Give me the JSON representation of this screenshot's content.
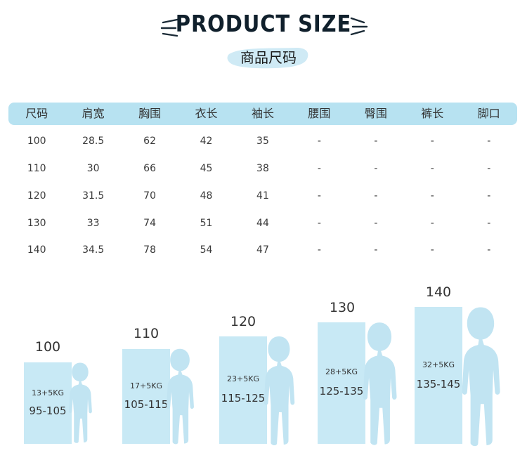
{
  "header": {
    "title": "PRODUCT SIZE",
    "subtitle": "商品尺码"
  },
  "table": {
    "columns": [
      "尺码",
      "肩宽",
      "胸围",
      "衣长",
      "袖长",
      "腰围",
      "臀围",
      "裤长",
      "脚口"
    ],
    "rows": [
      [
        "100",
        "28.5",
        "62",
        "42",
        "35",
        "-",
        "-",
        "-",
        "-"
      ],
      [
        "110",
        "30",
        "66",
        "45",
        "38",
        "-",
        "-",
        "-",
        "-"
      ],
      [
        "120",
        "31.5",
        "70",
        "48",
        "41",
        "-",
        "-",
        "-",
        "-"
      ],
      [
        "130",
        "33",
        "74",
        "51",
        "44",
        "-",
        "-",
        "-",
        "-"
      ],
      [
        "140",
        "34.5",
        "78",
        "54",
        "47",
        "-",
        "-",
        "-",
        "-"
      ]
    ]
  },
  "size_chart": [
    {
      "size": "100",
      "weight": "13+5KG",
      "height": "95-105"
    },
    {
      "size": "110",
      "weight": "17+5KG",
      "height": "105-115"
    },
    {
      "size": "120",
      "weight": "23+5KG",
      "height": "115-125"
    },
    {
      "size": "130",
      "weight": "28+5KG",
      "height": "125-135"
    },
    {
      "size": "140",
      "weight": "32+5KG",
      "height": "135-145"
    }
  ],
  "colors": {
    "header_bar": "#b7e2f1",
    "size_box": "#c8e9f5",
    "silhouette": "#c1e4f2",
    "brush": "#cfeaf5"
  }
}
